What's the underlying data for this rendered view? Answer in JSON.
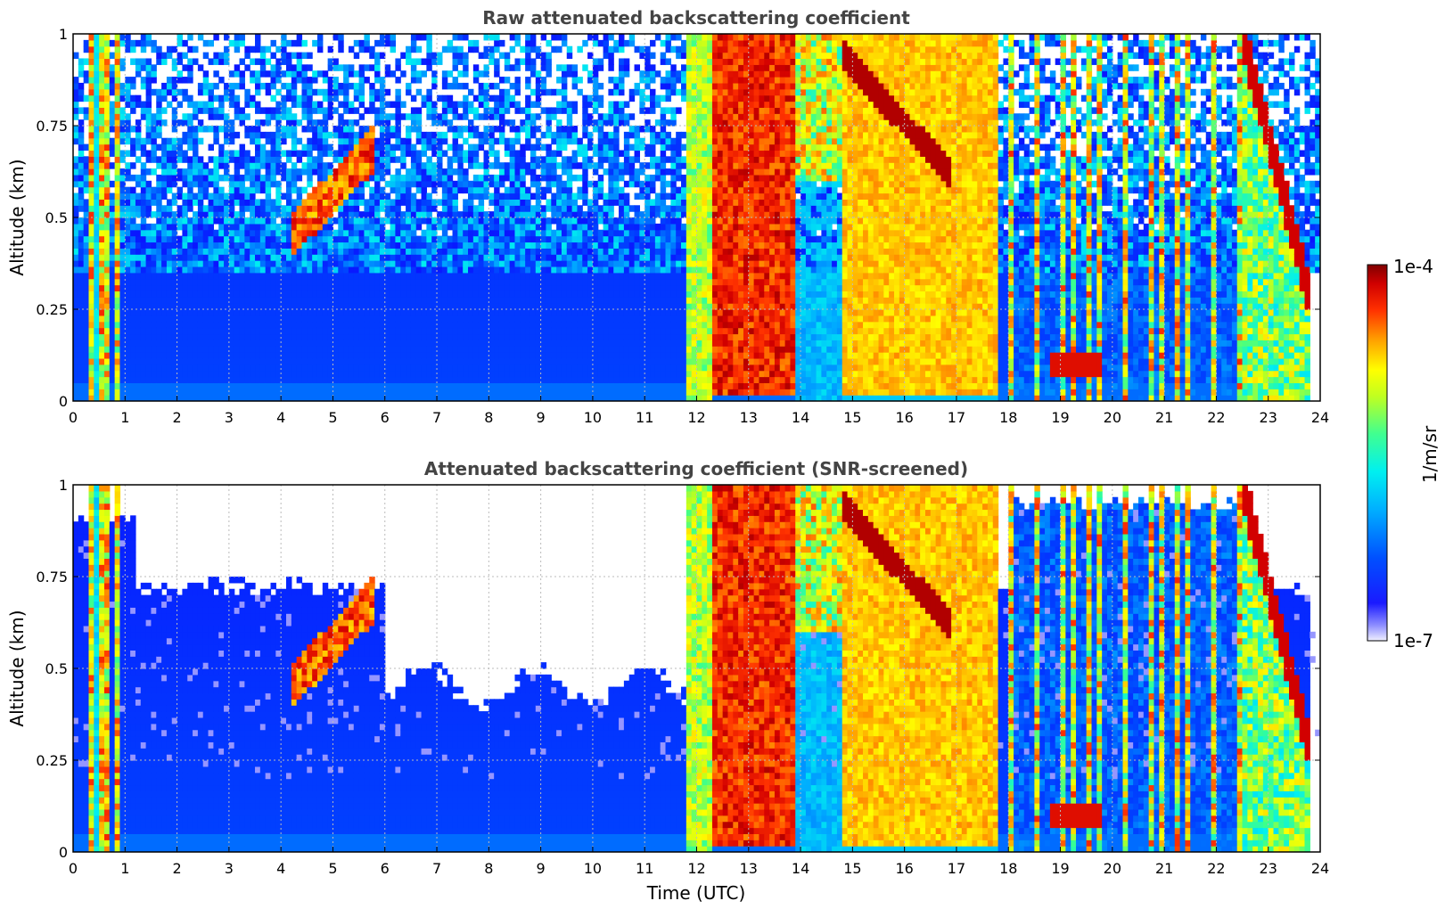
{
  "colorbar": {
    "label": "1/m/sr",
    "max_label": "1e-4",
    "min_label": "1e-7",
    "colormap": "jet (log scale)"
  },
  "chart_data": [
    {
      "type": "heatmap",
      "title": "Raw attenuated backscattering coefficient",
      "xlabel": "",
      "ylabel": "Altitude (km)",
      "xlim": [
        0,
        24
      ],
      "ylim": [
        0,
        1
      ],
      "xticks": [
        "0",
        "1",
        "2",
        "3",
        "4",
        "5",
        "6",
        "7",
        "8",
        "9",
        "10",
        "11",
        "12",
        "13",
        "14",
        "15",
        "16",
        "17",
        "18",
        "19",
        "20",
        "21",
        "22",
        "23",
        "24"
      ],
      "yticks": [
        "0",
        "0.25",
        "0.5",
        "0.75",
        "1"
      ],
      "grid": true,
      "z_range": [
        "1e-7",
        "1e-4"
      ],
      "z_scale": "log",
      "features": [
        {
          "time": [
            0.3,
            1.0
          ],
          "altitude": [
            0,
            1
          ],
          "level": "high",
          "note": "vertical streaks"
        },
        {
          "time": [
            4.2,
            5.8
          ],
          "altitude": [
            0.45,
            0.8
          ],
          "level": "high",
          "note": "thin layer"
        },
        {
          "time": [
            11.8,
            14.0
          ],
          "altitude": [
            0,
            1
          ],
          "level": "very high"
        },
        {
          "time": [
            14.8,
            17.8
          ],
          "altitude": [
            0.02,
            1
          ],
          "level": "high"
        },
        {
          "time": [
            18.8,
            19.8
          ],
          "altitude": [
            0.05,
            0.15
          ],
          "level": "very high"
        },
        {
          "time": [
            22.5,
            23.8
          ],
          "altitude": [
            0.25,
            1
          ],
          "level": "very high"
        }
      ]
    },
    {
      "type": "heatmap",
      "title": "Attenuated backscattering coefficient (SNR-screened)",
      "xlabel": "Time (UTC)",
      "ylabel": "Altitude (km)",
      "xlim": [
        0,
        24
      ],
      "ylim": [
        0,
        1
      ],
      "xticks": [
        "0",
        "1",
        "2",
        "3",
        "4",
        "5",
        "6",
        "7",
        "8",
        "9",
        "10",
        "11",
        "12",
        "13",
        "14",
        "15",
        "16",
        "17",
        "18",
        "19",
        "20",
        "21",
        "22",
        "23",
        "24"
      ],
      "yticks": [
        "0",
        "0.25",
        "0.5",
        "0.75",
        "1"
      ],
      "grid": true,
      "z_range": [
        "1e-7",
        "1e-4"
      ],
      "z_scale": "log"
    }
  ]
}
